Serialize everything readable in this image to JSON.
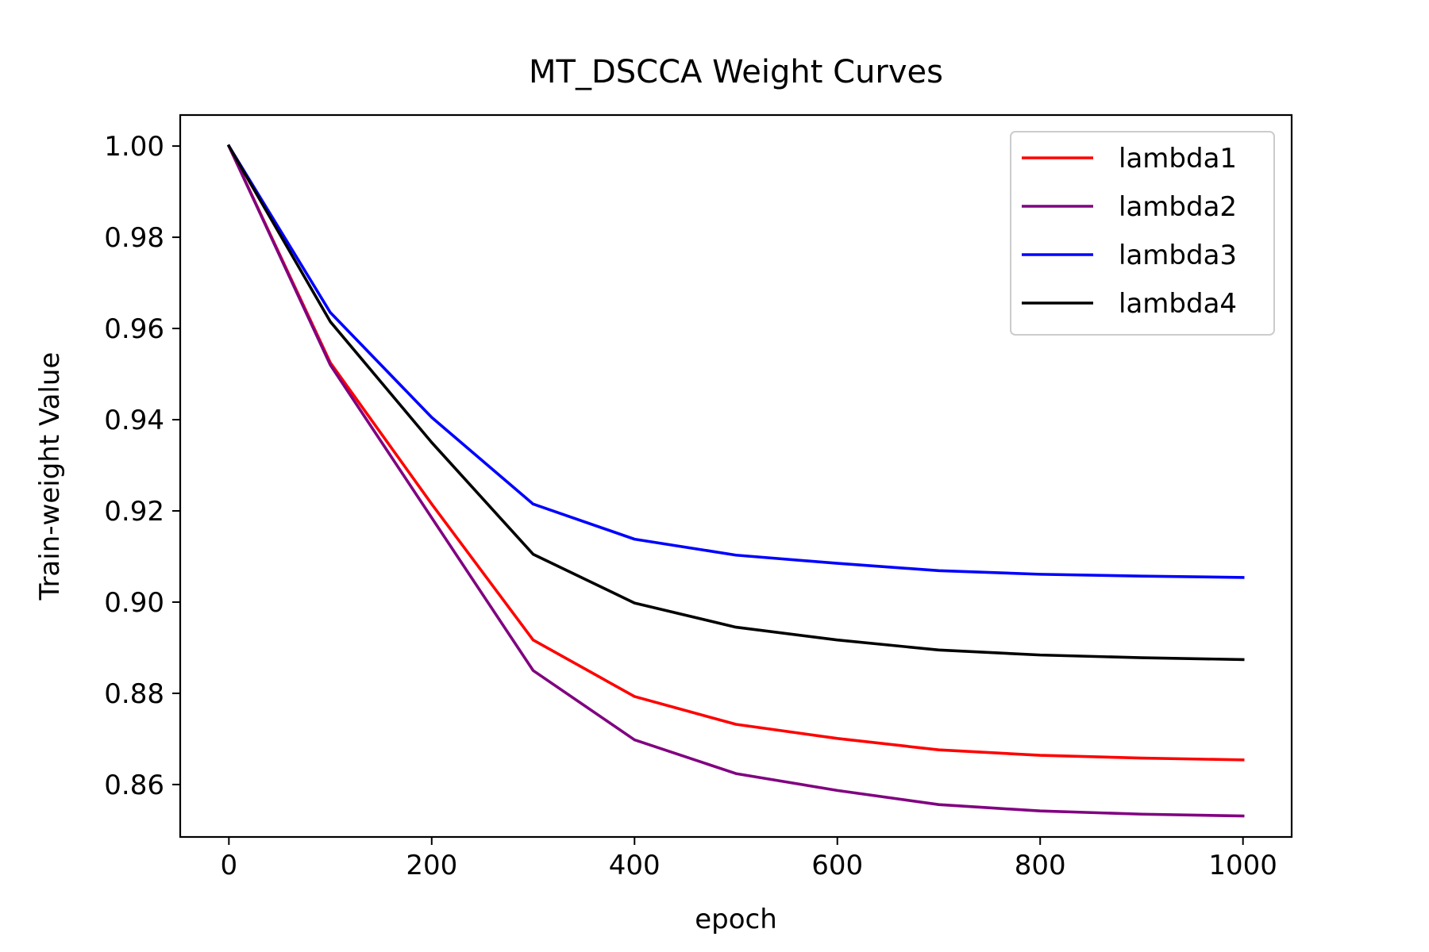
{
  "chart_data": {
    "type": "line",
    "title": "MT_DSCCA Weight Curves",
    "xlabel": "epoch",
    "ylabel": "Train-weight Value",
    "xlim": [
      -48,
      1048
    ],
    "ylim": [
      0.8485,
      1.0068
    ],
    "x_ticks": [
      0,
      200,
      400,
      600,
      800,
      1000
    ],
    "x_tick_labels": [
      "0",
      "200",
      "400",
      "600",
      "800",
      "1000"
    ],
    "y_ticks": [
      0.86,
      0.88,
      0.9,
      0.92,
      0.94,
      0.96,
      0.98,
      1.0
    ],
    "y_tick_labels": [
      "0.86",
      "0.88",
      "0.90",
      "0.92",
      "0.94",
      "0.96",
      "0.98",
      "1.00"
    ],
    "grid": false,
    "legend_position": "top-right",
    "x": [
      0,
      100,
      200,
      300,
      400,
      500,
      600,
      700,
      800,
      900,
      1000
    ],
    "series": [
      {
        "name": "lambda1",
        "color": "#ff0000",
        "values": [
          1.0,
          0.9525,
          0.9215,
          0.8917,
          0.8793,
          0.8732,
          0.8701,
          0.8676,
          0.8664,
          0.8658,
          0.8654
        ]
      },
      {
        "name": "lambda2",
        "color": "#800080",
        "values": [
          1.0,
          0.952,
          0.9185,
          0.885,
          0.8698,
          0.8624,
          0.8587,
          0.8556,
          0.8542,
          0.8535,
          0.8531
        ]
      },
      {
        "name": "lambda3",
        "color": "#0000ff",
        "values": [
          1.0,
          0.9635,
          0.9405,
          0.9215,
          0.9138,
          0.9103,
          0.9085,
          0.9069,
          0.9061,
          0.9057,
          0.9054
        ]
      },
      {
        "name": "lambda4",
        "color": "#000000",
        "values": [
          1.0,
          0.9615,
          0.935,
          0.9105,
          0.8998,
          0.8945,
          0.8917,
          0.8895,
          0.8884,
          0.8878,
          0.8874
        ]
      }
    ]
  }
}
